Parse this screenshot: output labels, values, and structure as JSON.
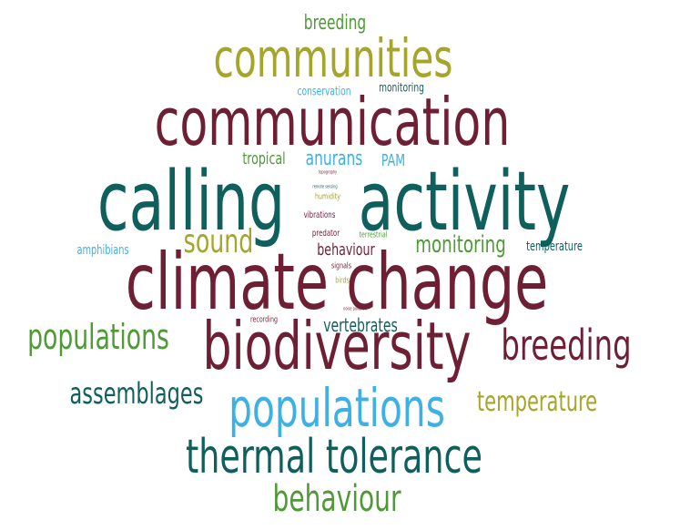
{
  "wordcloud": {
    "words": [
      {
        "text": "breeding",
        "color": "#4e9a36"
      },
      {
        "text": "communities",
        "color": "#a4a52a"
      },
      {
        "text": "conservation",
        "color": "#3fb0e3"
      },
      {
        "text": "monitoring",
        "color": "#0f5f5c"
      },
      {
        "text": "communication",
        "color": "#6e1f34"
      },
      {
        "text": "tropical",
        "color": "#4e9a36"
      },
      {
        "text": "anurans",
        "color": "#3fb0e3"
      },
      {
        "text": "PAM",
        "color": "#3fb0e3"
      },
      {
        "text": "topography",
        "color": "#6e1f34"
      },
      {
        "text": "calling",
        "color": "#0f5f5c"
      },
      {
        "text": "activity",
        "color": "#0f5f5c"
      },
      {
        "text": "remote sensing",
        "color": "#0f5f5c"
      },
      {
        "text": "humidity",
        "color": "#a4a52a"
      },
      {
        "text": "vibrations",
        "color": "#6e1f34"
      },
      {
        "text": "amphibians",
        "color": "#3fb0e3"
      },
      {
        "text": "sound",
        "color": "#a4a52a"
      },
      {
        "text": "predator",
        "color": "#6e1f34"
      },
      {
        "text": "terrestrial",
        "color": "#4e9a36"
      },
      {
        "text": "monitoring",
        "color": "#4e9a36"
      },
      {
        "text": "temperature",
        "color": "#0f5f5c"
      },
      {
        "text": "behaviour",
        "color": "#6e1f34"
      },
      {
        "text": "climate change",
        "color": "#6e1f34"
      },
      {
        "text": "signals",
        "color": "#6e1f34"
      },
      {
        "text": "birds",
        "color": "#a4a52a"
      },
      {
        "text": "noise pollution",
        "color": "#6e1f34"
      },
      {
        "text": "recording",
        "color": "#6e1f34"
      },
      {
        "text": "populations",
        "color": "#4e9a36"
      },
      {
        "text": "vertebrates",
        "color": "#0f5f5c"
      },
      {
        "text": "biodiversity",
        "color": "#6e1f34"
      },
      {
        "text": "breeding",
        "color": "#6e1f34"
      },
      {
        "text": "assemblages",
        "color": "#0f5f5c"
      },
      {
        "text": "populations",
        "color": "#3fb0e3"
      },
      {
        "text": "temperature",
        "color": "#a4a52a"
      },
      {
        "text": "thermal tolerance",
        "color": "#0f5f5c"
      },
      {
        "text": "behaviour",
        "color": "#4e9a36"
      }
    ]
  }
}
